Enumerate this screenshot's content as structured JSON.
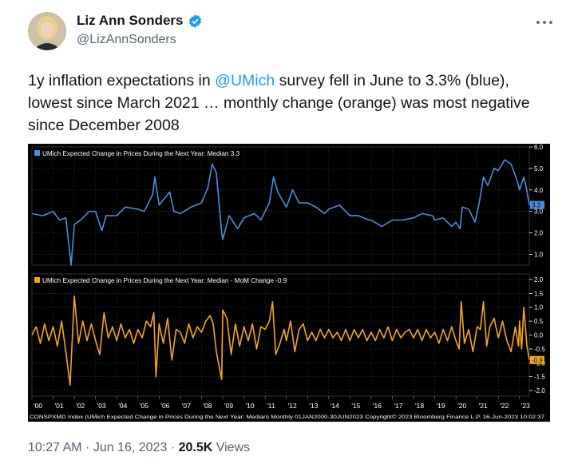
{
  "author": {
    "name": "Liz Ann Sonders",
    "handle": "@LizAnnSonders"
  },
  "tweet": {
    "text_before": "1y inflation expectations in ",
    "mention": "@UMich",
    "text_after": " survey fell in June to 3.3% (blue), lowest since March 2021 … monthly change (orange) was most negative since December 2008"
  },
  "meta": {
    "time": "10:27 AM",
    "sep1": " · ",
    "date": "Jun 16, 2023",
    "sep2": " · ",
    "views_count": "20.5K",
    "views_label": " Views"
  },
  "colors": {
    "accent": "#1d9bf0",
    "blue_series": "#4a90e2",
    "orange_series": "#f5a623",
    "chart_bg": "#000000"
  },
  "icons": {
    "verified": "verified-badge-icon",
    "more": "more-horizontal-icon"
  },
  "chart_data": [
    {
      "type": "line",
      "legend": "UMich Expected Change in Prices During the Next Year: Median 3.3",
      "last_value_label": "3.3",
      "ylim": [
        0.5,
        6.0
      ],
      "yticks": [
        "6.0",
        "5.0",
        "4.0",
        "3.0",
        "2.0",
        "1.0"
      ],
      "x_start": 2000,
      "x_end": 2023.46,
      "series": [
        {
          "points": [
            [
              2000,
              2.9
            ],
            [
              2000.5,
              2.8
            ],
            [
              2001,
              3.0
            ],
            [
              2001.3,
              2.6
            ],
            [
              2001.6,
              2.7
            ],
            [
              2001.85,
              0.5
            ],
            [
              2002,
              2.4
            ],
            [
              2002.3,
              2.6
            ],
            [
              2002.7,
              3.0
            ],
            [
              2003,
              3.0
            ],
            [
              2003.3,
              2.1
            ],
            [
              2003.5,
              2.8
            ],
            [
              2004,
              2.8
            ],
            [
              2004.4,
              3.2
            ],
            [
              2005,
              3.1
            ],
            [
              2005.3,
              3.0
            ],
            [
              2005.7,
              3.8
            ],
            [
              2005.8,
              4.6
            ],
            [
              2006,
              3.3
            ],
            [
              2006.5,
              3.9
            ],
            [
              2006.7,
              3.0
            ],
            [
              2007,
              2.9
            ],
            [
              2007.5,
              3.2
            ],
            [
              2008,
              3.4
            ],
            [
              2008.3,
              4.1
            ],
            [
              2008.5,
              5.2
            ],
            [
              2008.7,
              4.8
            ],
            [
              2008.95,
              2.0
            ],
            [
              2009,
              1.7
            ],
            [
              2009.3,
              2.8
            ],
            [
              2009.7,
              2.2
            ],
            [
              2010,
              2.7
            ],
            [
              2010.5,
              2.9
            ],
            [
              2010.8,
              2.6
            ],
            [
              2011,
              3.0
            ],
            [
              2011.2,
              3.4
            ],
            [
              2011.4,
              4.6
            ],
            [
              2011.6,
              3.9
            ],
            [
              2012,
              3.2
            ],
            [
              2012.3,
              4.0
            ],
            [
              2012.6,
              3.4
            ],
            [
              2013,
              3.4
            ],
            [
              2013.4,
              3.2
            ],
            [
              2013.8,
              2.9
            ],
            [
              2014,
              3.1
            ],
            [
              2014.5,
              3.3
            ],
            [
              2015,
              2.8
            ],
            [
              2015.4,
              2.8
            ],
            [
              2015.9,
              2.6
            ],
            [
              2016,
              2.6
            ],
            [
              2016.5,
              2.3
            ],
            [
              2017,
              2.6
            ],
            [
              2017.5,
              2.6
            ],
            [
              2018,
              2.7
            ],
            [
              2018.4,
              2.9
            ],
            [
              2018.9,
              2.8
            ],
            [
              2019,
              2.6
            ],
            [
              2019.4,
              2.7
            ],
            [
              2019.8,
              2.3
            ],
            [
              2020,
              2.5
            ],
            [
              2020.2,
              2.2
            ],
            [
              2020.3,
              3.2
            ],
            [
              2020.6,
              3.1
            ],
            [
              2020.9,
              2.5
            ],
            [
              2021.1,
              3.4
            ],
            [
              2021.3,
              4.6
            ],
            [
              2021.5,
              4.2
            ],
            [
              2021.8,
              5.0
            ],
            [
              2022,
              4.9
            ],
            [
              2022.3,
              5.4
            ],
            [
              2022.6,
              5.2
            ],
            [
              2022.9,
              4.4
            ],
            [
              2023,
              4.0
            ],
            [
              2023.2,
              4.6
            ],
            [
              2023.3,
              4.2
            ],
            [
              2023.46,
              3.3
            ]
          ]
        }
      ]
    },
    {
      "type": "line",
      "legend": "UMich Expected Change in Prices During the Next Year: Median - MoM Change -0.9",
      "last_value_label": "-0.9",
      "ylim": [
        -2.2,
        2.2
      ],
      "yticks": [
        "2.0",
        "1.5",
        "1.0",
        "0.5",
        "0.0",
        "-0.5",
        "-1.0",
        "-1.5",
        "-2.0"
      ],
      "x_start": 2000,
      "x_end": 2023.46,
      "series": [
        {
          "points": [
            [
              2000,
              0.0
            ],
            [
              2000.2,
              0.3
            ],
            [
              2000.4,
              -0.3
            ],
            [
              2000.6,
              0.4
            ],
            [
              2000.8,
              -0.2
            ],
            [
              2001,
              0.3
            ],
            [
              2001.2,
              -0.4
            ],
            [
              2001.4,
              0.5
            ],
            [
              2001.6,
              -0.6
            ],
            [
              2001.8,
              -1.8
            ],
            [
              2002,
              1.4
            ],
            [
              2002.2,
              -0.3
            ],
            [
              2002.4,
              0.5
            ],
            [
              2002.6,
              -0.2
            ],
            [
              2002.8,
              0.4
            ],
            [
              2003,
              -0.2
            ],
            [
              2003.2,
              -0.7
            ],
            [
              2003.4,
              0.8
            ],
            [
              2003.6,
              -0.1
            ],
            [
              2003.8,
              0.3
            ],
            [
              2004,
              -0.2
            ],
            [
              2004.2,
              0.4
            ],
            [
              2004.4,
              -0.1
            ],
            [
              2004.6,
              0.2
            ],
            [
              2004.8,
              -0.3
            ],
            [
              2005,
              0.2
            ],
            [
              2005.2,
              -0.1
            ],
            [
              2005.4,
              0.5
            ],
            [
              2005.6,
              0.3
            ],
            [
              2005.75,
              0.8
            ],
            [
              2005.85,
              -1.5
            ],
            [
              2006,
              0.4
            ],
            [
              2006.2,
              -0.3
            ],
            [
              2006.4,
              0.6
            ],
            [
              2006.6,
              -0.9
            ],
            [
              2006.8,
              0.2
            ],
            [
              2007,
              0.1
            ],
            [
              2007.2,
              -0.3
            ],
            [
              2007.4,
              0.4
            ],
            [
              2007.6,
              -0.1
            ],
            [
              2007.8,
              0.3
            ],
            [
              2008,
              0.1
            ],
            [
              2008.2,
              0.5
            ],
            [
              2008.4,
              0.7
            ],
            [
              2008.55,
              0.4
            ],
            [
              2008.7,
              -0.6
            ],
            [
              2008.85,
              -1.2
            ],
            [
              2008.95,
              -1.6
            ],
            [
              2009,
              0.9
            ],
            [
              2009.2,
              0.6
            ],
            [
              2009.4,
              -0.7
            ],
            [
              2009.6,
              0.4
            ],
            [
              2009.8,
              -0.4
            ],
            [
              2010,
              0.3
            ],
            [
              2010.2,
              -0.2
            ],
            [
              2010.4,
              0.4
            ],
            [
              2010.6,
              -0.5
            ],
            [
              2010.8,
              0.3
            ],
            [
              2011,
              0.2
            ],
            [
              2011.2,
              0.5
            ],
            [
              2011.35,
              1.2
            ],
            [
              2011.5,
              -0.7
            ],
            [
              2011.7,
              -0.3
            ],
            [
              2011.9,
              0.2
            ],
            [
              2012,
              -0.2
            ],
            [
              2012.2,
              0.5
            ],
            [
              2012.4,
              -0.6
            ],
            [
              2012.6,
              0.2
            ],
            [
              2012.8,
              0.4
            ],
            [
              2013,
              -0.2
            ],
            [
              2013.2,
              0.1
            ],
            [
              2013.4,
              -0.2
            ],
            [
              2013.6,
              0.2
            ],
            [
              2013.8,
              -0.1
            ],
            [
              2014,
              0.2
            ],
            [
              2014.2,
              -0.1
            ],
            [
              2014.4,
              0.1
            ],
            [
              2014.6,
              -0.2
            ],
            [
              2014.8,
              0.2
            ],
            [
              2015,
              -0.2
            ],
            [
              2015.2,
              0.2
            ],
            [
              2015.4,
              -0.1
            ],
            [
              2015.6,
              0.2
            ],
            [
              2015.8,
              -0.2
            ],
            [
              2016,
              0.1
            ],
            [
              2016.2,
              -0.2
            ],
            [
              2016.4,
              0.2
            ],
            [
              2016.6,
              -0.1
            ],
            [
              2016.8,
              0.3
            ],
            [
              2017,
              -0.2
            ],
            [
              2017.2,
              0.2
            ],
            [
              2017.4,
              -0.1
            ],
            [
              2017.6,
              0.1
            ],
            [
              2017.8,
              0.2
            ],
            [
              2018,
              -0.1
            ],
            [
              2018.2,
              0.2
            ],
            [
              2018.4,
              -0.2
            ],
            [
              2018.6,
              0.2
            ],
            [
              2018.8,
              -0.1
            ],
            [
              2019,
              0.1
            ],
            [
              2019.2,
              -0.3
            ],
            [
              2019.4,
              0.2
            ],
            [
              2019.6,
              -0.2
            ],
            [
              2019.8,
              0.3
            ],
            [
              2020,
              -0.2
            ],
            [
              2020.15,
              -0.5
            ],
            [
              2020.25,
              1.2
            ],
            [
              2020.4,
              -0.3
            ],
            [
              2020.6,
              0.2
            ],
            [
              2020.8,
              -0.6
            ],
            [
              2021,
              0.3
            ],
            [
              2021.15,
              0.2
            ],
            [
              2021.3,
              1.2
            ],
            [
              2021.45,
              -0.4
            ],
            [
              2021.6,
              0.3
            ],
            [
              2021.8,
              0.6
            ],
            [
              2022,
              -0.1
            ],
            [
              2022.2,
              0.5
            ],
            [
              2022.4,
              -0.2
            ],
            [
              2022.6,
              -0.6
            ],
            [
              2022.8,
              0.3
            ],
            [
              2022.95,
              -0.4
            ],
            [
              2023,
              0.5
            ],
            [
              2023.1,
              -0.5
            ],
            [
              2023.2,
              1.0
            ],
            [
              2023.35,
              -0.4
            ],
            [
              2023.46,
              -0.9
            ]
          ]
        }
      ]
    }
  ],
  "x_axis": {
    "labels": [
      "'00",
      "'01",
      "'02",
      "'03",
      "'04",
      "'05",
      "'06",
      "'07",
      "'08",
      "'09",
      "'10",
      "'11",
      "'12",
      "'13",
      "'14",
      "'15",
      "'16",
      "'17",
      "'18",
      "'19",
      "'20",
      "'21",
      "'22",
      "'23"
    ]
  },
  "footer_text": "CONSPXMD Index (UMich Expected Change in Prices During the Next Year: Median)  Monthly 01JAN2000-30JUN2023 Copyright© 2023 Bloomberg Finance L.P.  16-Jun-2023 10:02:37"
}
